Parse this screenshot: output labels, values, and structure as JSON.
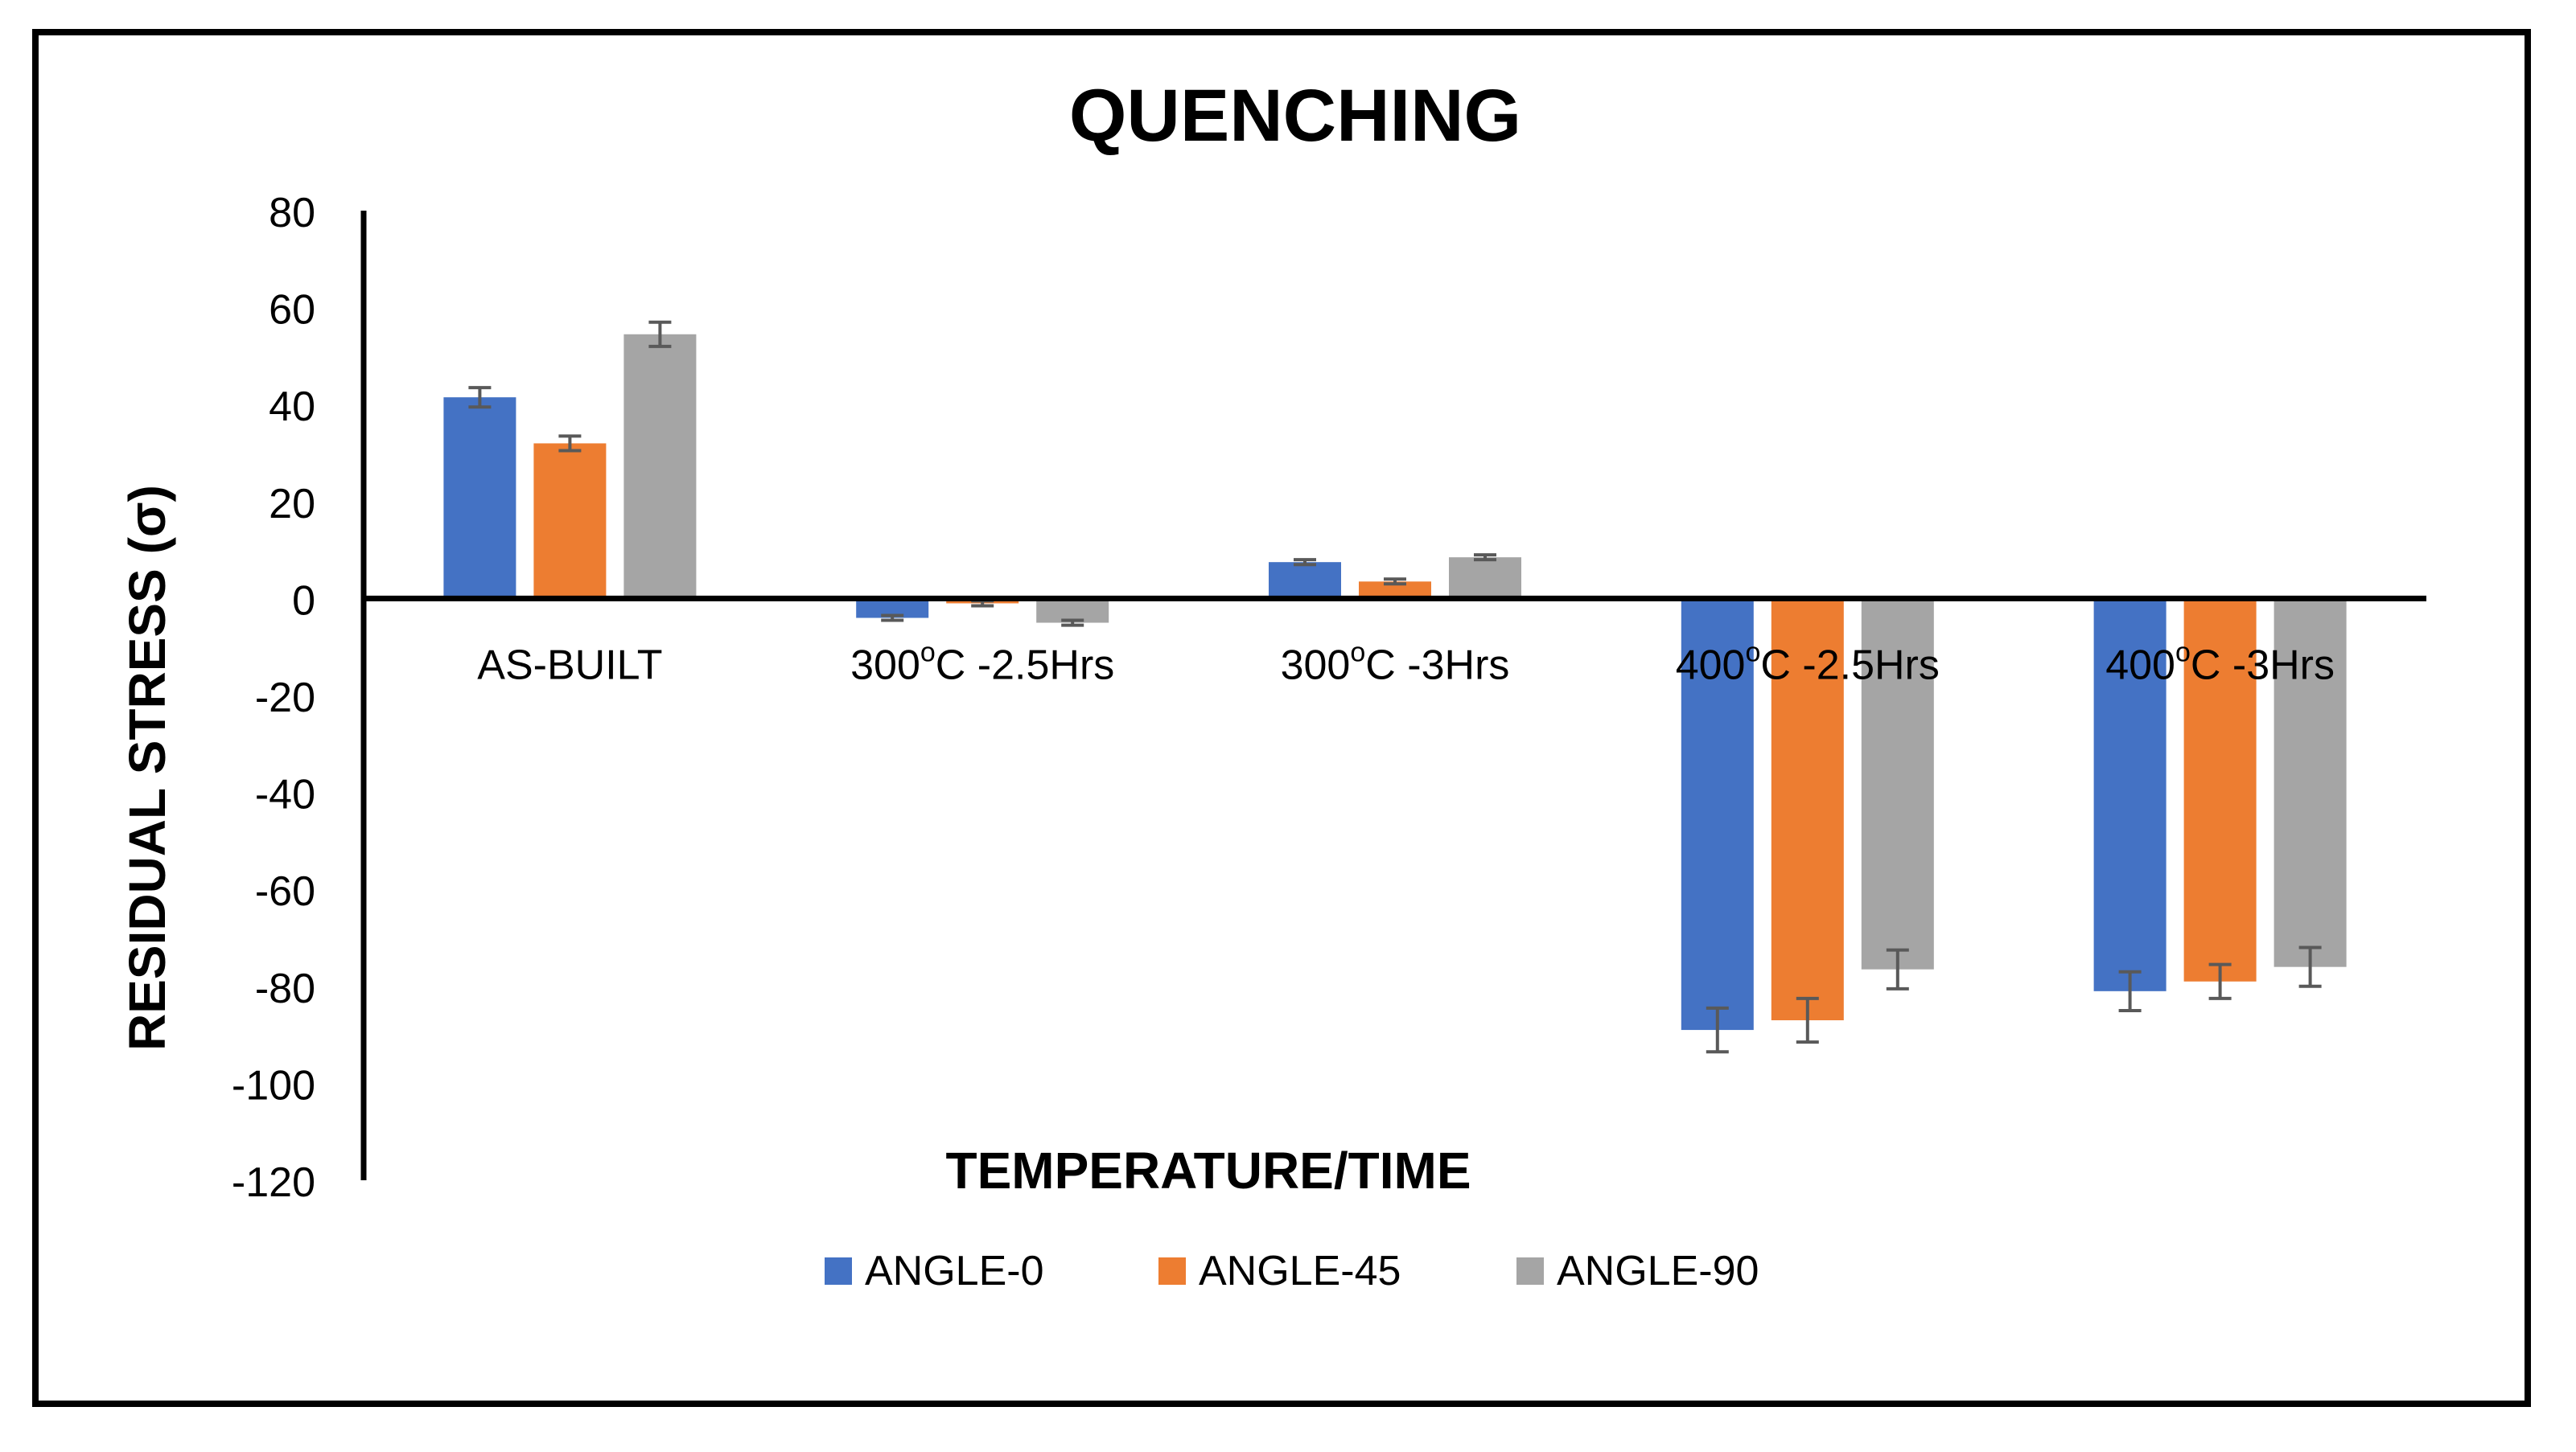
{
  "chart_data": {
    "type": "bar",
    "title": "QUENCHING",
    "xlabel": "TEMPERATURE/TIME",
    "ylabel": "RESIDUAL STRESS (σ)",
    "ylim": [
      -120,
      80
    ],
    "yticks": [
      80,
      60,
      40,
      20,
      0,
      -20,
      -40,
      -60,
      -80,
      -100,
      -120
    ],
    "grid": false,
    "legend_position": "bottom",
    "categories": [
      {
        "main": "AS-BUILT",
        "sup": "",
        "rest": ""
      },
      {
        "main": "300",
        "sup": "o",
        "rest": "C -2.5Hrs"
      },
      {
        "main": "300",
        "sup": "o",
        "rest": "C -3Hrs"
      },
      {
        "main": "400",
        "sup": "o",
        "rest": "C -2.5Hrs"
      },
      {
        "main": "400",
        "sup": "o",
        "rest": "C -3Hrs"
      }
    ],
    "series": [
      {
        "name": "ANGLE-0",
        "color": "#4472C4",
        "values": [
          41.5,
          -4,
          7.5,
          -89,
          -81
        ],
        "errors": [
          2,
          0.5,
          0.5,
          4.5,
          4
        ]
      },
      {
        "name": "ANGLE-45",
        "color": "#ED7D31",
        "values": [
          32,
          -1,
          3.5,
          -87,
          -79
        ],
        "errors": [
          1.5,
          0.5,
          0.5,
          4.5,
          3.5
        ]
      },
      {
        "name": "ANGLE-90",
        "color": "#A5A5A5",
        "values": [
          54.5,
          -5,
          8.5,
          -76.5,
          -76
        ],
        "errors": [
          2.5,
          0.5,
          0.5,
          4,
          4
        ]
      }
    ],
    "error_bar_color": "#595959"
  }
}
